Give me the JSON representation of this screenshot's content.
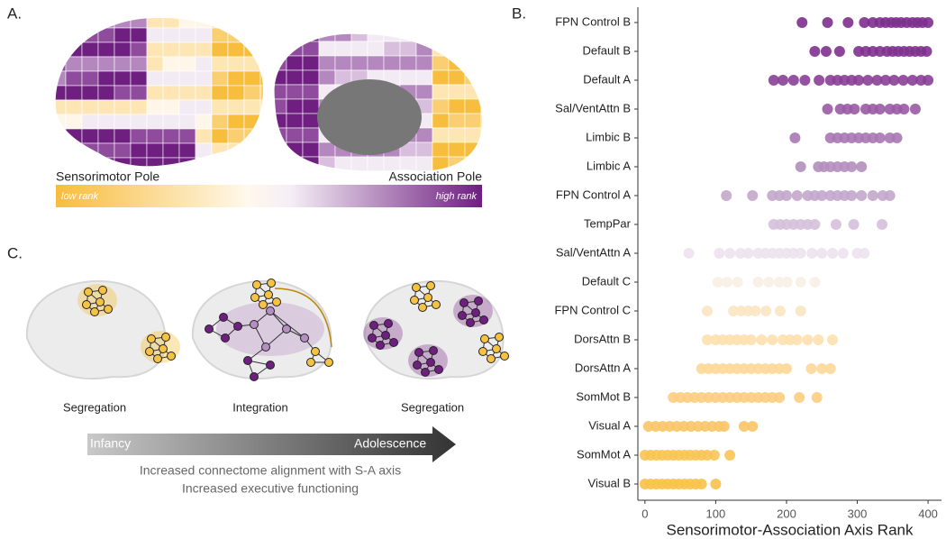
{
  "panel_labels": [
    "A.",
    "B.",
    "C."
  ],
  "brain_map": {
    "left_label": "Sensorimotor Pole",
    "right_label": "Association Pole",
    "low": "low rank",
    "high": "high rank"
  },
  "development": {
    "stages": [
      "Segregation",
      "Integration",
      "Segregation"
    ],
    "arrow_start": "Infancy",
    "arrow_end": "Adolescence",
    "notes": [
      "Increased connectome alignment with S-A axis",
      "Increased executive functioning"
    ]
  },
  "chart_data": {
    "type": "strip",
    "xlabel": "Sensorimotor-Association Axis Rank",
    "xlim": [
      -10,
      419
    ],
    "xticks": [
      0,
      100,
      200,
      300,
      400
    ],
    "categories": [
      "FPN Control B",
      "Default B",
      "Default A",
      "Sal/VentAttn B",
      "Limbic B",
      "Limbic A",
      "FPN Control A",
      "TempPar",
      "Sal/VentAttn A",
      "Default C",
      "FPN Control C",
      "DorsAttn B",
      "DorsAttn A",
      "SomMot B",
      "Visual A",
      "SomMot A",
      "Visual B"
    ],
    "colors": [
      "#7e2f8e",
      "#80318f",
      "#8a3f97",
      "#9a5aa5",
      "#a878b3",
      "#b38fbd",
      "#c3a6cb",
      "#d5c0da",
      "#ece2ee",
      "#f8efe6",
      "#fbe6c3",
      "#fde0ad",
      "#fdd898",
      "#fccd80",
      "#fac567",
      "#f9c456",
      "#f8c24a"
    ],
    "values": [
      [
        222,
        258,
        287,
        310,
        322,
        332,
        340,
        348,
        355,
        362,
        370,
        378,
        385,
        392,
        400
      ],
      [
        240,
        256,
        275,
        302,
        312,
        322,
        332,
        342,
        350,
        358,
        366,
        374,
        382,
        390,
        398
      ],
      [
        182,
        195,
        210,
        226,
        246,
        262,
        272,
        282,
        292,
        302,
        315,
        328,
        340,
        352,
        365,
        378,
        390,
        400
      ],
      [
        258,
        276,
        286,
        296,
        312,
        322,
        332,
        346,
        356,
        366,
        382
      ],
      [
        212,
        262,
        272,
        282,
        292,
        302,
        312,
        322,
        332,
        346,
        356
      ],
      [
        220,
        245,
        253,
        262,
        272,
        282,
        292,
        306
      ],
      [
        115,
        152,
        180,
        190,
        200,
        215,
        230,
        240,
        250,
        262,
        272,
        282,
        292,
        306,
        322,
        336,
        346
      ],
      [
        182,
        191,
        200,
        210,
        220,
        230,
        240,
        270,
        295,
        335
      ],
      [
        62,
        105,
        120,
        135,
        146,
        160,
        170,
        180,
        190,
        200,
        210,
        220,
        236,
        250,
        265,
        280,
        300,
        310
      ],
      [
        103,
        116,
        131,
        160,
        175,
        190,
        201,
        220,
        240
      ],
      [
        88,
        125,
        136,
        146,
        156,
        171,
        191,
        220
      ],
      [
        88,
        100,
        110,
        120,
        130,
        140,
        150,
        165,
        180,
        195,
        205,
        215,
        230,
        245,
        265
      ],
      [
        80,
        90,
        100,
        110,
        120,
        130,
        140,
        150,
        160,
        170,
        180,
        190,
        200,
        235,
        250,
        262
      ],
      [
        40,
        50,
        60,
        70,
        80,
        90,
        100,
        110,
        120,
        130,
        140,
        150,
        160,
        170,
        180,
        190,
        218,
        243
      ],
      [
        5,
        15,
        25,
        35,
        45,
        55,
        65,
        75,
        85,
        95,
        105,
        112,
        140,
        152
      ],
      [
        0,
        8,
        16,
        24,
        32,
        40,
        48,
        56,
        64,
        72,
        80,
        88,
        98,
        120
      ],
      [
        0,
        8,
        16,
        24,
        32,
        40,
        48,
        56,
        64,
        72,
        80,
        100
      ]
    ]
  }
}
